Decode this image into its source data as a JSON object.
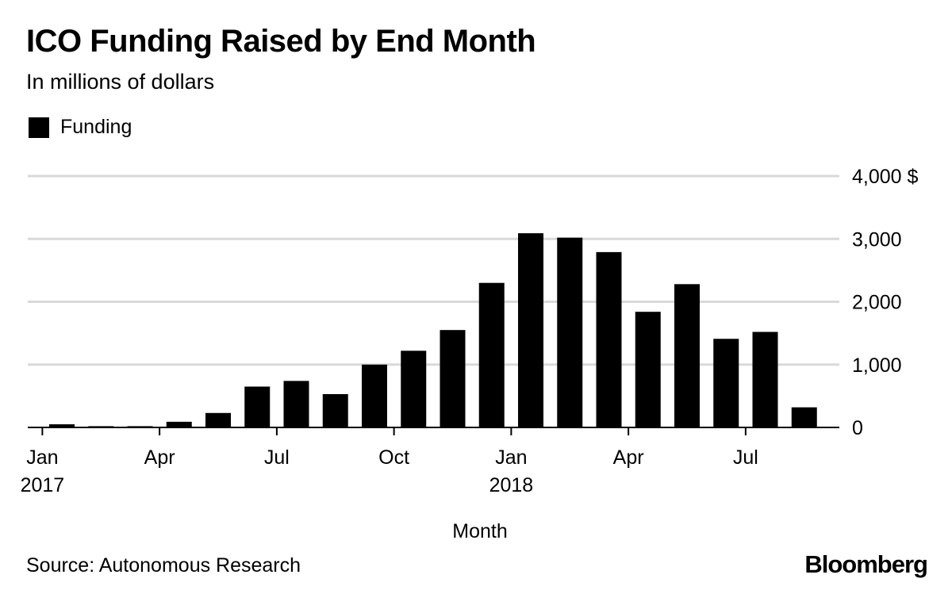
{
  "header": {
    "title": "ICO Funding Raised by End Month",
    "subtitle": "In millions of dollars"
  },
  "legend": {
    "label": "Funding",
    "color": "#000000"
  },
  "footer": {
    "source": "Source: Autonomous Research",
    "brand": "Bloomberg"
  },
  "chart_data": {
    "type": "bar",
    "title": "ICO Funding Raised by End Month",
    "subtitle": "In millions of dollars",
    "xlabel": "Month",
    "ylabel": "",
    "ylim": [
      0,
      4000
    ],
    "yticks": [
      {
        "value": 0,
        "label": "0"
      },
      {
        "value": 1000,
        "label": "1,000"
      },
      {
        "value": 2000,
        "label": "2,000"
      },
      {
        "value": 3000,
        "label": "3,000"
      },
      {
        "value": 4000,
        "label": "4,000 $"
      }
    ],
    "xticks": [
      {
        "month_index": 0,
        "label": "Jan",
        "year": "2017"
      },
      {
        "month_index": 3,
        "label": "Apr",
        "year": ""
      },
      {
        "month_index": 6,
        "label": "Jul",
        "year": ""
      },
      {
        "month_index": 9,
        "label": "Oct",
        "year": ""
      },
      {
        "month_index": 12,
        "label": "Jan",
        "year": "2018"
      },
      {
        "month_index": 15,
        "label": "Apr",
        "year": ""
      },
      {
        "month_index": 18,
        "label": "Jul",
        "year": ""
      }
    ],
    "categories": [
      "Jan 2017",
      "Feb 2017",
      "Mar 2017",
      "Apr 2017",
      "May 2017",
      "Jun 2017",
      "Jul 2017",
      "Aug 2017",
      "Sep 2017",
      "Oct 2017",
      "Nov 2017",
      "Dec 2017",
      "Jan 2018",
      "Feb 2018",
      "Mar 2018",
      "Apr 2018",
      "May 2018",
      "Jun 2018",
      "Jul 2018",
      "Aug 2018"
    ],
    "series": [
      {
        "name": "Funding",
        "color": "#000000",
        "values": [
          50,
          20,
          20,
          90,
          230,
          650,
          740,
          530,
          1000,
          1220,
          1550,
          2300,
          3090,
          3020,
          2790,
          1840,
          2280,
          1410,
          1520,
          320
        ]
      }
    ],
    "grid": true,
    "legend_position": "top-left"
  }
}
